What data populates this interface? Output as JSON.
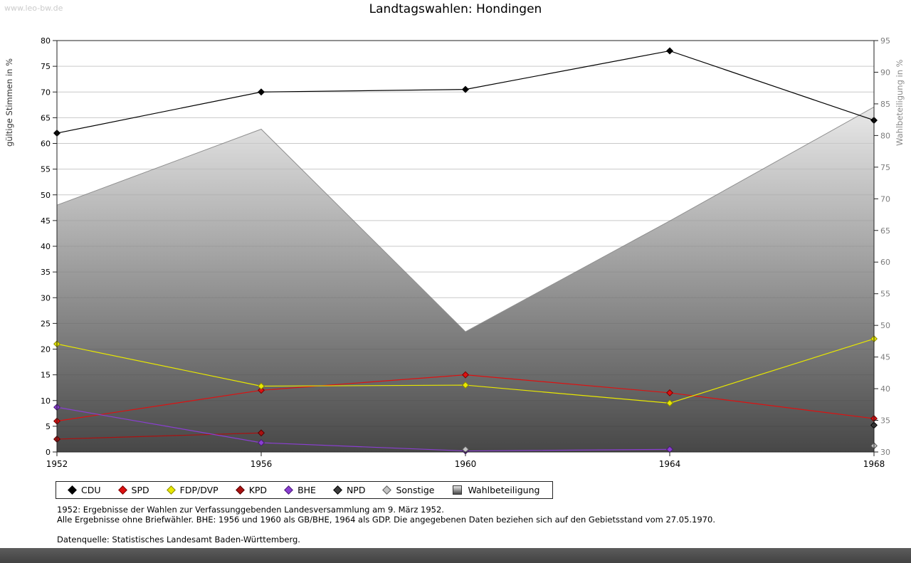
{
  "watermark": "www.leo-bw.de",
  "title": "Landtagswahlen: Hondingen",
  "chart_data": {
    "type": "line",
    "x": [
      1952,
      1956,
      1960,
      1964,
      1968
    ],
    "left_axis": {
      "label": "gültige Stimmen in %",
      "min": 0,
      "max": 80,
      "tick_step": 5
    },
    "right_axis": {
      "label": "Wahlbeteiligung in %",
      "min": 30,
      "max": 95,
      "tick_step": 5
    },
    "area_series": {
      "name": "Wahlbeteiligung",
      "axis": "right",
      "values": [
        69,
        81,
        49,
        66.5,
        84.5
      ],
      "fill_top": "#e9e9e9",
      "fill_bottom": "#474747",
      "stroke": "#8f8f8f"
    },
    "series": [
      {
        "name": "CDU",
        "color": "#000000",
        "edge": "#000000",
        "values": [
          62,
          70,
          70.5,
          78,
          64.5
        ]
      },
      {
        "name": "SPD",
        "color": "#dd1111",
        "edge": "#7a0000",
        "values": [
          6,
          12,
          15,
          11.5,
          6.5
        ]
      },
      {
        "name": "FDP/DVP",
        "color": "#e8e800",
        "edge": "#8c8c00",
        "values": [
          21,
          12.8,
          13,
          9.5,
          22
        ]
      },
      {
        "name": "KPD",
        "color": "#aa1111",
        "edge": "#550000",
        "values": [
          2.5,
          3.7,
          null,
          null,
          null
        ]
      },
      {
        "name": "BHE",
        "color": "#8a3fd1",
        "edge": "#4a1a77",
        "values": [
          8.7,
          1.8,
          0.2,
          0.5,
          null
        ]
      },
      {
        "name": "NPD",
        "color": "#3c3c3c",
        "edge": "#000000",
        "values": [
          null,
          null,
          null,
          null,
          5.2
        ]
      },
      {
        "name": "Sonstige",
        "color": "#c4c4c4",
        "edge": "#5a5a5a",
        "values": [
          null,
          null,
          0.5,
          null,
          1.2
        ]
      }
    ],
    "legend": [
      {
        "label": "CDU",
        "marker": "diamond",
        "color": "#000000",
        "edge": "#000000"
      },
      {
        "label": "SPD",
        "marker": "diamond",
        "color": "#dd1111",
        "edge": "#7a0000"
      },
      {
        "label": "FDP/DVP",
        "marker": "diamond",
        "color": "#e8e800",
        "edge": "#8c8c00"
      },
      {
        "label": "KPD",
        "marker": "diamond",
        "color": "#aa1111",
        "edge": "#550000"
      },
      {
        "label": "BHE",
        "marker": "diamond",
        "color": "#8a3fd1",
        "edge": "#4a1a77"
      },
      {
        "label": "NPD",
        "marker": "diamond",
        "color": "#3c3c3c",
        "edge": "#000000"
      },
      {
        "label": "Sonstige",
        "marker": "diamond",
        "color": "#c4c4c4",
        "edge": "#5a5a5a"
      },
      {
        "label": "Wahlbeteiligung",
        "marker": "square",
        "color": "#9a9a9a",
        "edge": "#333333"
      }
    ],
    "grid": "horizontal",
    "legend_position": "bottom"
  },
  "footnotes": [
    "1952: Ergebnisse der Wahlen zur Verfassunggebenden Landesversammlung am 9. März 1952.",
    "Alle Ergebnisse ohne Briefwähler. BHE: 1956 und 1960 als GB/BHE, 1964 als GDP. Die angegebenen Daten beziehen sich auf den Gebietsstand vom 27.05.1970."
  ],
  "source": "Datenquelle: Statistisches Landesamt Baden-Württemberg."
}
